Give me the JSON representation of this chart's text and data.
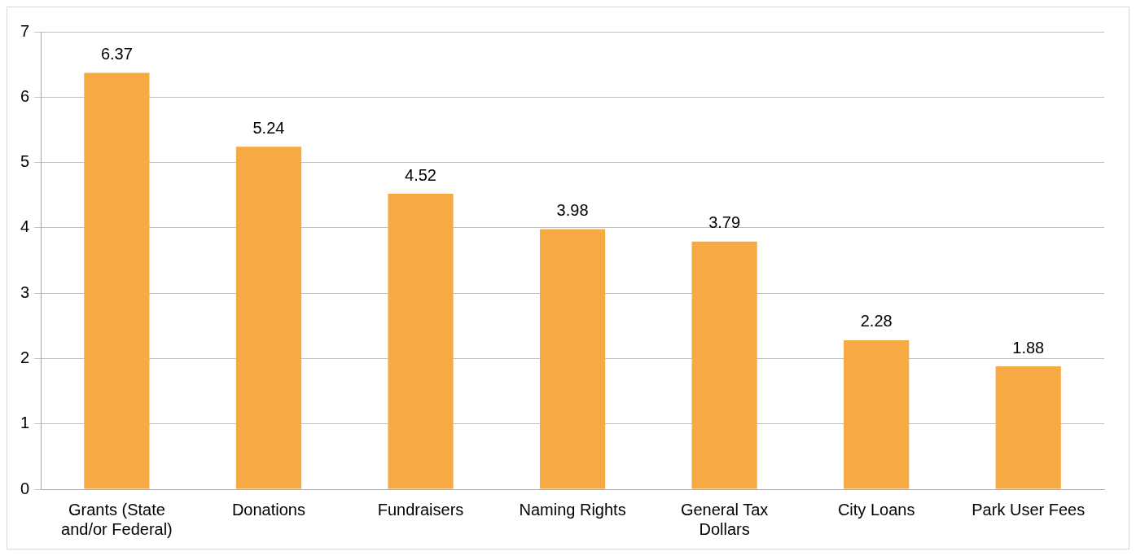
{
  "chart_data": {
    "type": "bar",
    "categories": [
      "Grants (State and/or Federal)",
      "Donations",
      "Fundraisers",
      "Naming Rights",
      "General Tax Dollars",
      "City Loans",
      "Park User Fees"
    ],
    "values": [
      6.37,
      5.24,
      4.52,
      3.98,
      3.79,
      2.28,
      1.88
    ],
    "color": "#f7a944",
    "ylim": [
      0,
      7
    ],
    "yticks": [
      0,
      1,
      2,
      3,
      4,
      5,
      6,
      7
    ],
    "grid": "y",
    "data_labels": true,
    "legend": false
  }
}
